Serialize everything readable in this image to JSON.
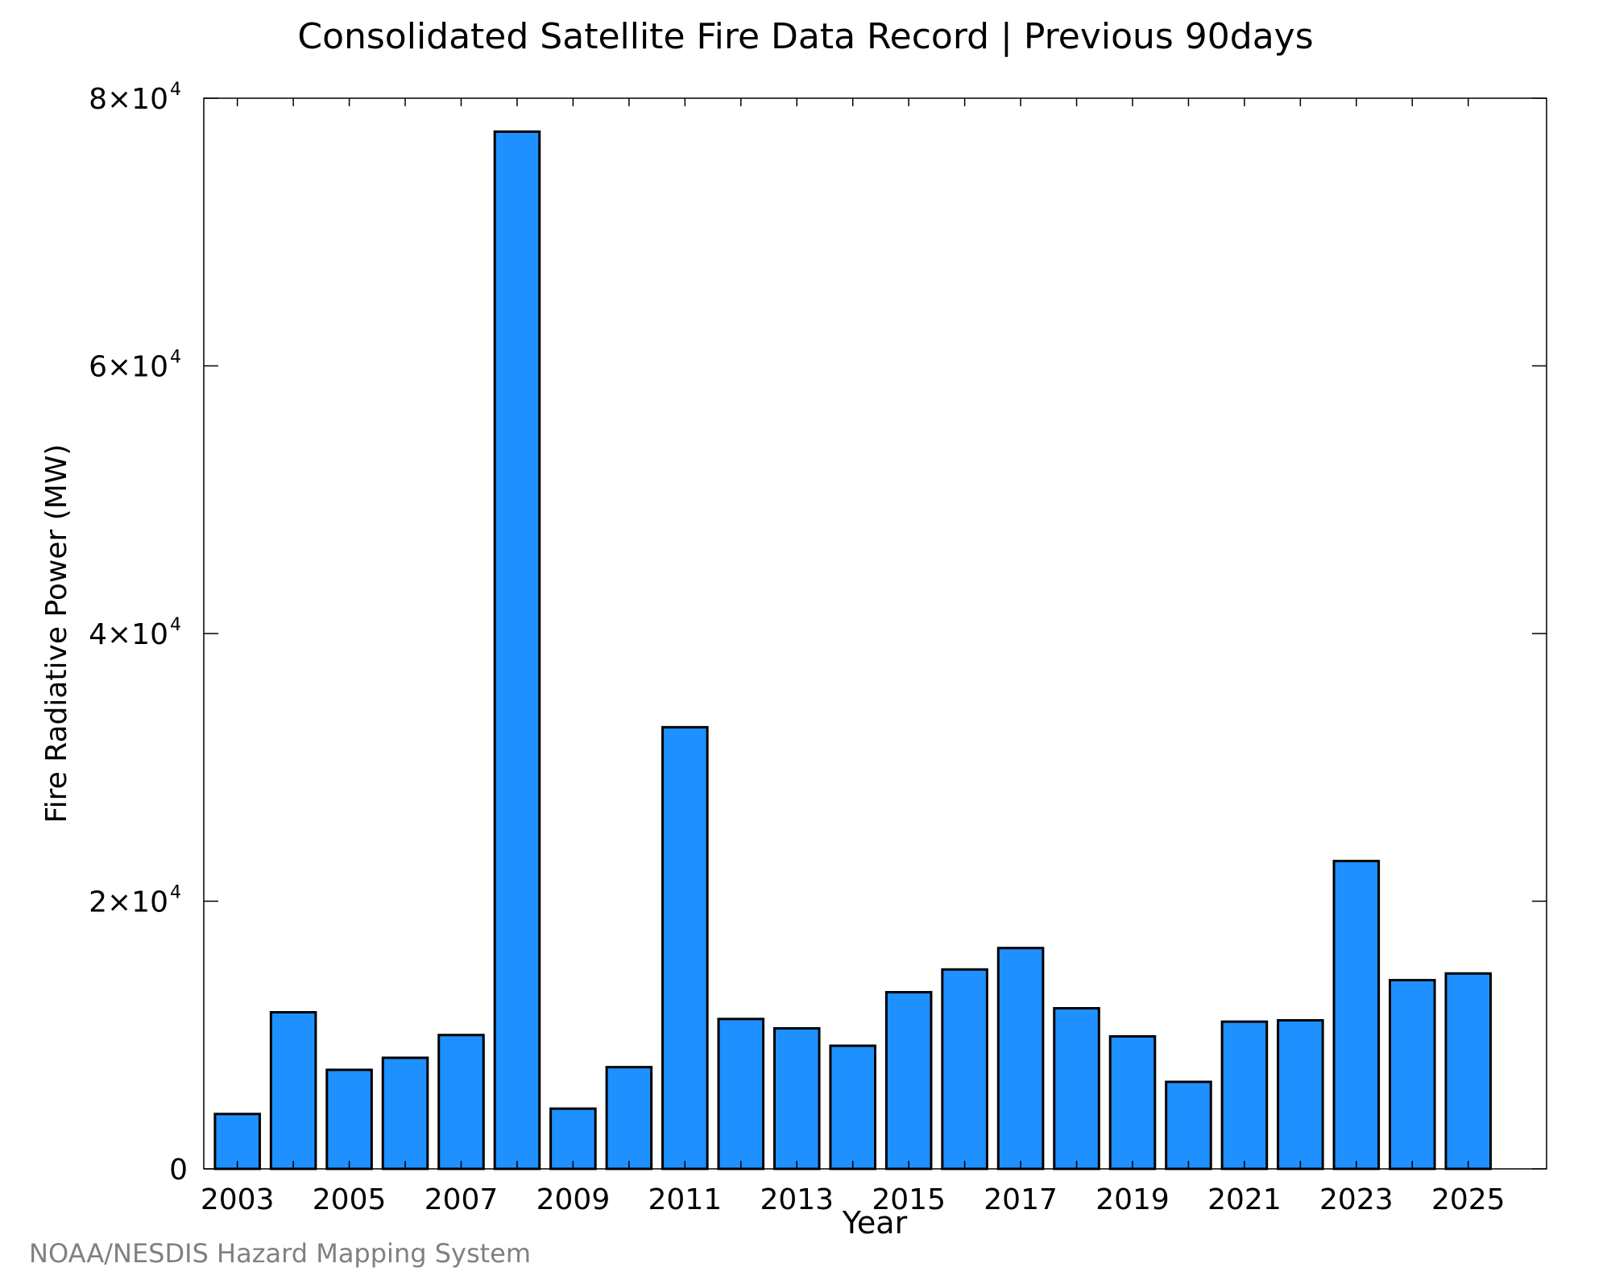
{
  "title": "Consolidated Satellite Fire Data Record | Previous 90days",
  "credit": "NOAA/NESDIS Hazard Mapping System",
  "colors": {
    "bar_fill": "#1E90FF",
    "bar_stroke": "#000000"
  },
  "chart_data": {
    "type": "bar",
    "title": "Consolidated Satellite Fire Data Record | Previous 90days",
    "xlabel": "Year",
    "ylabel": "Fire Radiative Power (MW)",
    "categories": [
      "2003",
      "2004",
      "2005",
      "2006",
      "2007",
      "2008",
      "2009",
      "2010",
      "2011",
      "2012",
      "2013",
      "2014",
      "2015",
      "2016",
      "2017",
      "2018",
      "2019",
      "2020",
      "2021",
      "2022",
      "2023",
      "2024",
      "2025"
    ],
    "values": [
      4100,
      11700,
      7400,
      8300,
      10000,
      77500,
      4500,
      7600,
      33000,
      11200,
      10500,
      9200,
      13200,
      14900,
      16500,
      12000,
      9900,
      6500,
      11000,
      11100,
      23000,
      14100,
      14600
    ],
    "xticks": [
      "2003",
      "2005",
      "2007",
      "2009",
      "2011",
      "2013",
      "2015",
      "2017",
      "2019",
      "2021",
      "2023",
      "2025"
    ],
    "yticks": [
      {
        "value": 0,
        "label": "0",
        "mantissa": "",
        "exponent": ""
      },
      {
        "value": 20000,
        "label": "",
        "mantissa": "2×10",
        "exponent": "4"
      },
      {
        "value": 40000,
        "label": "",
        "mantissa": "4×10",
        "exponent": "4"
      },
      {
        "value": 60000,
        "label": "",
        "mantissa": "6×10",
        "exponent": "4"
      },
      {
        "value": 80000,
        "label": "",
        "mantissa": "8×10",
        "exponent": "4"
      }
    ],
    "ylim": [
      0,
      80000
    ],
    "xlim": [
      2002.4,
      2026.4
    ],
    "grid": false,
    "legend": "none"
  }
}
